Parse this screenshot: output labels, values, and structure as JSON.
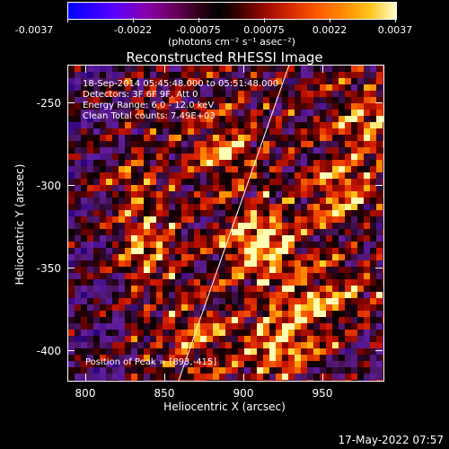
{
  "colorbar": {
    "tick_labels": [
      "-0.0037",
      "-0.0022",
      "-0.00075",
      "0.00075",
      "0.0022",
      "0.0037"
    ],
    "units": "(photons cm⁻² s⁻¹ asec⁻²)",
    "range": [
      -0.0037,
      0.0037
    ]
  },
  "plot": {
    "title": "Reconstructed RHESSI Image",
    "xlabel": "Heliocentric X (arcsec)",
    "ylabel": "Heliocentric Y (arcsec)",
    "x_ticks": [
      "800",
      "850",
      "900",
      "950"
    ],
    "y_ticks": [
      "-250",
      "-300",
      "-350",
      "-400"
    ],
    "xlim": [
      785,
      985
    ],
    "ylim": [
      -420,
      -231
    ]
  },
  "annotations": {
    "time": "18-Sep-2014 05:45:48.000 to 05:51:48.000",
    "detectors": "Detectors: 3F 6F 9F, Att 0",
    "energy": "Energy Range: 6.0 - 12.0 keV",
    "method": "Clean     Total counts: 7.49E+03",
    "peak": "Position of Peak = [893,-415]"
  },
  "footer": {
    "timestamp": "17-May-2022 07:57"
  },
  "chart_data": {
    "type": "heatmap",
    "title": "Reconstructed RHESSI Image",
    "xlabel": "Heliocentric X (arcsec)",
    "ylabel": "Heliocentric Y (arcsec)",
    "xlim": [
      785,
      985
    ],
    "ylim": [
      -420,
      -231
    ],
    "colorbar_range": [
      -0.0037,
      0.0037
    ],
    "limb_line": {
      "x": [
        855,
        925
      ],
      "y": [
        -420,
        -231
      ]
    },
    "peak": {
      "x": 893,
      "y": -415
    }
  }
}
